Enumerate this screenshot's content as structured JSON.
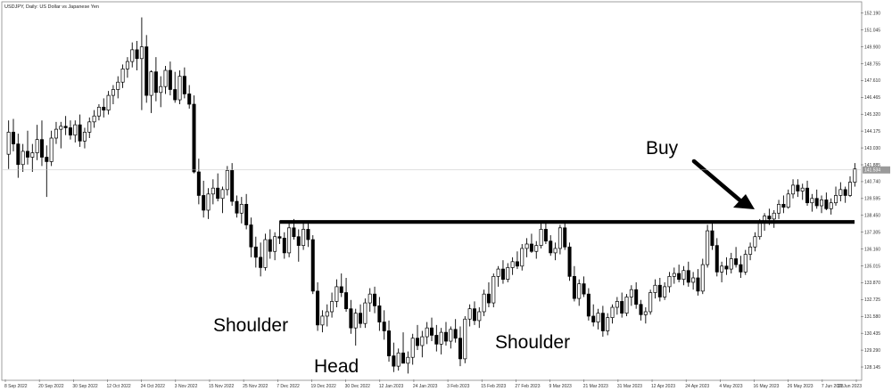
{
  "chart_data": {
    "type": "candlestick",
    "title": "USDJPY, Daily:  US Dollar vs Japanese Yen",
    "y_axis_ticks": [
      "152.190",
      "151.045",
      "149.900",
      "148.755",
      "147.610",
      "146.465",
      "145.320",
      "144.175",
      "143.030",
      "141.885",
      "140.740",
      "139.595",
      "138.450",
      "137.305",
      "136.160",
      "135.015",
      "133.870",
      "132.725",
      "131.580",
      "130.435",
      "129.290",
      "128.145"
    ],
    "ylim": [
      127.3,
      152.9
    ],
    "x_axis_ticks": [
      "8 Sep 2022",
      "20 Sep 2022",
      "30 Sep 2022",
      "12 Oct 2022",
      "24 Oct 2022",
      "3 Nov 2022",
      "15 Nov 2022",
      "25 Nov 2022",
      "7 Dec 2022",
      "19 Dec 2022",
      "30 Dec 2022",
      "12 Jan 2023",
      "24 Jan 2023",
      "3 Feb 2023",
      "15 Feb 2023",
      "27 Feb 2023",
      "9 Mar 2023",
      "21 Mar 2023",
      "31 Mar 2023",
      "12 Apr 2023",
      "24 Apr 2023",
      "4 May 2023",
      "16 May 2023",
      "26 May 2023",
      "7 Jun 2023",
      "19 Jun 2023"
    ],
    "current_price": "141.534",
    "neckline": 138.0,
    "colors": {
      "bull": "#ffffff",
      "bear": "#000000",
      "wick": "#000000",
      "grid": "#c8c8c8",
      "annotation": "#000000"
    },
    "annotations": {
      "left_shoulder": "Shoulder",
      "head": "Head",
      "right_shoulder": "Shoulder",
      "buy": "Buy"
    },
    "candles": [
      [
        142.6,
        144.9,
        141.6,
        144.1
      ],
      [
        144.1,
        145.0,
        142.8,
        143.3
      ],
      [
        143.3,
        144.0,
        141.0,
        141.9
      ],
      [
        141.9,
        143.3,
        141.4,
        142.8
      ],
      [
        142.8,
        144.2,
        141.9,
        142.4
      ],
      [
        142.4,
        143.3,
        141.4,
        142.7
      ],
      [
        142.7,
        144.6,
        142.2,
        143.6
      ],
      [
        143.6,
        144.9,
        141.8,
        142.4
      ],
      [
        142.4,
        143.2,
        139.7,
        142.1
      ],
      [
        142.1,
        144.2,
        141.8,
        143.7
      ],
      [
        143.7,
        144.8,
        143.3,
        144.3
      ],
      [
        144.3,
        144.8,
        143.0,
        144.5
      ],
      [
        144.5,
        145.2,
        143.9,
        144.4
      ],
      [
        144.4,
        144.9,
        143.6,
        143.9
      ],
      [
        143.9,
        144.9,
        143.4,
        144.6
      ],
      [
        144.6,
        145.3,
        143.1,
        143.5
      ],
      [
        143.5,
        144.4,
        143.0,
        144.1
      ],
      [
        144.1,
        145.1,
        143.7,
        144.8
      ],
      [
        144.8,
        145.6,
        144.4,
        145.2
      ],
      [
        145.2,
        146.0,
        144.9,
        145.8
      ],
      [
        145.8,
        146.4,
        145.1,
        145.6
      ],
      [
        145.6,
        146.9,
        145.3,
        146.6
      ],
      [
        146.6,
        147.3,
        146.0,
        147.0
      ],
      [
        147.0,
        147.9,
        146.4,
        147.5
      ],
      [
        147.5,
        148.7,
        147.1,
        148.4
      ],
      [
        148.4,
        149.2,
        147.8,
        148.9
      ],
      [
        148.9,
        150.2,
        148.5,
        149.7
      ],
      [
        149.7,
        150.3,
        148.3,
        149.1
      ],
      [
        149.1,
        151.9,
        145.6,
        149.9
      ],
      [
        149.9,
        150.7,
        146.1,
        146.6
      ],
      [
        146.6,
        148.3,
        145.4,
        148.2
      ],
      [
        148.2,
        149.2,
        146.2,
        146.8
      ],
      [
        146.8,
        147.9,
        145.8,
        147.2
      ],
      [
        147.2,
        148.6,
        146.7,
        148.3
      ],
      [
        148.3,
        148.9,
        146.6,
        147.0
      ],
      [
        147.0,
        148.2,
        146.1,
        146.3
      ],
      [
        146.3,
        148.3,
        146.0,
        147.9
      ],
      [
        147.9,
        148.5,
        146.4,
        146.7
      ],
      [
        146.7,
        147.3,
        145.7,
        146.0
      ],
      [
        146.0,
        146.6,
        141.3,
        141.4
      ],
      [
        141.4,
        142.3,
        139.2,
        139.8
      ],
      [
        139.8,
        140.8,
        138.3,
        138.8
      ],
      [
        138.8,
        140.3,
        138.2,
        139.9
      ],
      [
        139.9,
        140.9,
        139.2,
        140.3
      ],
      [
        140.3,
        141.3,
        139.4,
        139.6
      ],
      [
        139.6,
        140.4,
        138.6,
        140.2
      ],
      [
        140.2,
        141.8,
        139.8,
        141.5
      ],
      [
        141.5,
        142.0,
        139.1,
        139.4
      ],
      [
        139.4,
        139.8,
        138.3,
        138.6
      ],
      [
        138.6,
        139.7,
        137.9,
        139.2
      ],
      [
        139.2,
        139.9,
        137.5,
        137.8
      ],
      [
        137.8,
        138.3,
        135.6,
        136.3
      ],
      [
        136.3,
        137.0,
        134.9,
        135.6
      ],
      [
        135.6,
        136.6,
        134.3,
        134.9
      ],
      [
        134.9,
        137.2,
        134.7,
        136.8
      ],
      [
        136.8,
        137.5,
        135.5,
        136.0
      ],
      [
        136.0,
        137.3,
        135.4,
        137.0
      ],
      [
        137.0,
        138.1,
        136.5,
        136.9
      ],
      [
        136.9,
        137.3,
        135.5,
        135.9
      ],
      [
        135.9,
        137.9,
        135.6,
        137.6
      ],
      [
        137.6,
        138.2,
        136.8,
        137.0
      ],
      [
        137.0,
        137.5,
        135.3,
        136.4
      ],
      [
        136.4,
        137.9,
        136.1,
        137.5
      ],
      [
        137.5,
        138.0,
        136.3,
        136.8
      ],
      [
        136.8,
        137.1,
        133.1,
        133.3
      ],
      [
        133.3,
        133.9,
        130.6,
        131.0
      ],
      [
        131.0,
        132.0,
        130.5,
        131.6
      ],
      [
        131.6,
        132.4,
        130.9,
        131.9
      ],
      [
        131.9,
        133.2,
        131.5,
        132.6
      ],
      [
        132.6,
        134.1,
        132.2,
        133.6
      ],
      [
        133.6,
        134.5,
        132.9,
        133.2
      ],
      [
        133.2,
        134.2,
        131.9,
        132.1
      ],
      [
        132.1,
        132.7,
        130.4,
        130.8
      ],
      [
        130.8,
        132.1,
        129.6,
        131.8
      ],
      [
        131.8,
        132.4,
        130.8,
        131.1
      ],
      [
        131.1,
        132.8,
        130.8,
        132.5
      ],
      [
        132.5,
        133.5,
        131.9,
        133.1
      ],
      [
        133.1,
        133.6,
        131.8,
        132.3
      ],
      [
        132.3,
        132.9,
        130.6,
        131.2
      ],
      [
        131.2,
        132.0,
        130.0,
        130.6
      ],
      [
        130.6,
        131.3,
        128.5,
        128.9
      ],
      [
        128.9,
        129.8,
        127.8,
        128.2
      ],
      [
        128.2,
        129.4,
        127.9,
        129.1
      ],
      [
        129.1,
        130.5,
        128.6,
        128.4
      ],
      [
        128.4,
        129.2,
        127.7,
        128.8
      ],
      [
        128.8,
        130.4,
        128.3,
        130.1
      ],
      [
        130.1,
        131.0,
        129.3,
        129.6
      ],
      [
        129.6,
        130.6,
        128.8,
        130.2
      ],
      [
        130.2,
        131.2,
        129.7,
        130.8
      ],
      [
        130.8,
        131.5,
        129.9,
        130.3
      ],
      [
        130.3,
        131.0,
        129.2,
        129.7
      ],
      [
        129.7,
        130.8,
        129.0,
        130.5
      ],
      [
        130.5,
        131.2,
        129.6,
        129.9
      ],
      [
        129.9,
        130.9,
        129.4,
        130.7
      ],
      [
        130.7,
        131.4,
        129.8,
        130.1
      ],
      [
        130.1,
        130.9,
        128.2,
        128.7
      ],
      [
        128.7,
        131.6,
        128.4,
        131.4
      ],
      [
        131.4,
        132.4,
        130.9,
        132.1
      ],
      [
        132.1,
        132.6,
        131.0,
        131.3
      ],
      [
        131.3,
        132.2,
        130.8,
        131.9
      ],
      [
        131.9,
        133.4,
        131.6,
        133.1
      ],
      [
        133.1,
        133.9,
        132.2,
        132.5
      ],
      [
        132.5,
        134.5,
        132.2,
        134.3
      ],
      [
        134.3,
        135.0,
        133.6,
        134.8
      ],
      [
        134.8,
        135.4,
        133.8,
        134.1
      ],
      [
        134.1,
        135.2,
        133.9,
        134.9
      ],
      [
        134.9,
        135.6,
        134.4,
        135.3
      ],
      [
        135.3,
        136.0,
        134.8,
        135.0
      ],
      [
        135.0,
        136.5,
        134.7,
        136.2
      ],
      [
        136.2,
        136.9,
        135.6,
        136.5
      ],
      [
        136.5,
        137.2,
        135.9,
        136.0
      ],
      [
        136.0,
        136.7,
        135.5,
        136.4
      ],
      [
        136.4,
        137.9,
        136.2,
        137.5
      ],
      [
        137.5,
        138.1,
        136.5,
        136.7
      ],
      [
        136.7,
        137.1,
        135.7,
        135.9
      ],
      [
        135.9,
        136.6,
        135.4,
        136.2
      ],
      [
        136.2,
        137.8,
        135.8,
        137.6
      ],
      [
        137.6,
        138.0,
        136.1,
        136.3
      ],
      [
        136.3,
        136.6,
        134.0,
        134.3
      ],
      [
        134.3,
        135.0,
        132.6,
        132.8
      ],
      [
        132.8,
        134.1,
        132.3,
        133.8
      ],
      [
        133.8,
        134.3,
        132.9,
        133.1
      ],
      [
        133.1,
        133.5,
        131.3,
        131.6
      ],
      [
        131.6,
        132.4,
        130.9,
        131.2
      ],
      [
        131.2,
        132.1,
        130.7,
        131.8
      ],
      [
        131.8,
        132.3,
        130.2,
        130.6
      ],
      [
        130.6,
        131.8,
        130.3,
        131.5
      ],
      [
        131.5,
        132.4,
        131.1,
        132.2
      ],
      [
        132.2,
        132.9,
        131.7,
        132.6
      ],
      [
        132.6,
        133.2,
        131.5,
        131.8
      ],
      [
        131.8,
        133.1,
        131.6,
        132.9
      ],
      [
        132.9,
        133.7,
        132.3,
        133.4
      ],
      [
        133.4,
        133.9,
        132.1,
        132.4
      ],
      [
        132.4,
        132.7,
        131.3,
        131.7
      ],
      [
        131.7,
        132.2,
        131.1,
        131.9
      ],
      [
        131.9,
        133.4,
        131.7,
        133.2
      ],
      [
        133.2,
        134.1,
        132.8,
        133.7
      ],
      [
        133.7,
        134.2,
        132.6,
        132.9
      ],
      [
        132.9,
        133.9,
        132.7,
        133.6
      ],
      [
        133.6,
        134.6,
        133.2,
        134.3
      ],
      [
        134.3,
        134.9,
        133.8,
        134.5
      ],
      [
        134.5,
        135.1,
        133.9,
        134.1
      ],
      [
        134.1,
        135.0,
        133.7,
        134.7
      ],
      [
        134.7,
        135.3,
        133.6,
        133.9
      ],
      [
        133.9,
        134.6,
        133.4,
        134.2
      ],
      [
        134.2,
        134.8,
        133.0,
        133.3
      ],
      [
        133.3,
        135.5,
        133.1,
        135.1
      ],
      [
        135.1,
        137.8,
        134.9,
        137.4
      ],
      [
        137.4,
        137.9,
        136.1,
        136.4
      ],
      [
        136.4,
        136.9,
        134.3,
        134.6
      ],
      [
        134.6,
        135.3,
        133.9,
        135.0
      ],
      [
        135.0,
        135.6,
        134.4,
        134.8
      ],
      [
        134.8,
        135.9,
        134.5,
        135.5
      ],
      [
        135.5,
        136.3,
        134.9,
        135.1
      ],
      [
        135.1,
        135.7,
        134.2,
        134.6
      ],
      [
        134.6,
        136.1,
        134.4,
        135.8
      ],
      [
        135.8,
        136.6,
        135.4,
        136.3
      ],
      [
        136.3,
        137.3,
        136.0,
        137.0
      ],
      [
        137.0,
        138.2,
        136.8,
        138.0
      ],
      [
        138.0,
        138.6,
        137.4,
        138.4
      ],
      [
        138.4,
        138.9,
        137.8,
        138.2
      ],
      [
        138.2,
        138.8,
        137.6,
        138.6
      ],
      [
        138.6,
        139.5,
        138.2,
        139.2
      ],
      [
        139.2,
        139.8,
        138.6,
        139.0
      ],
      [
        139.0,
        140.2,
        138.9,
        139.9
      ],
      [
        139.9,
        140.9,
        139.6,
        140.5
      ],
      [
        140.5,
        140.9,
        139.7,
        140.1
      ],
      [
        140.1,
        140.6,
        139.5,
        140.3
      ],
      [
        140.3,
        140.8,
        139.1,
        139.3
      ],
      [
        139.3,
        139.9,
        138.7,
        139.6
      ],
      [
        139.6,
        140.2,
        138.9,
        139.1
      ],
      [
        139.1,
        139.8,
        138.6,
        139.5
      ],
      [
        139.5,
        140.0,
        138.8,
        138.9
      ],
      [
        138.9,
        139.6,
        138.5,
        139.3
      ],
      [
        139.3,
        140.4,
        139.1,
        139.8
      ],
      [
        139.8,
        140.7,
        139.4,
        140.2
      ],
      [
        140.2,
        140.4,
        139.3,
        139.8
      ],
      [
        139.8,
        141.1,
        139.7,
        140.7
      ],
      [
        140.7,
        142.0,
        140.4,
        141.6
      ]
    ]
  }
}
